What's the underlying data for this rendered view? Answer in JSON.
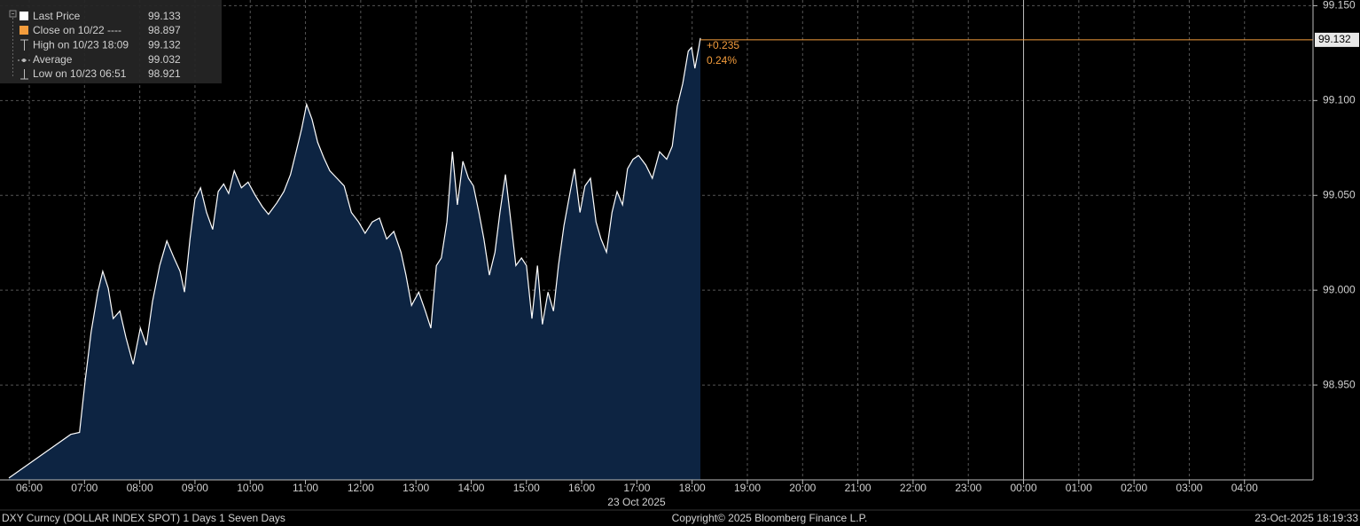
{
  "chart_data": {
    "type": "area",
    "series": [
      {
        "name": "Last Price",
        "color": "#ffffff",
        "fill": "#0d2442",
        "x": [
          5.63,
          6.75,
          6.91,
          7.01,
          7.12,
          7.24,
          7.33,
          7.43,
          7.52,
          7.64,
          7.75,
          7.88,
          8.01,
          8.12,
          8.23,
          8.36,
          8.49,
          8.62,
          8.73,
          8.81,
          8.91,
          9.0,
          9.1,
          9.21,
          9.32,
          9.42,
          9.52,
          9.61,
          9.71,
          9.84,
          9.96,
          10.09,
          10.22,
          10.33,
          10.48,
          10.61,
          10.73,
          10.83,
          10.93,
          11.02,
          11.12,
          11.22,
          11.33,
          11.44,
          11.57,
          11.7,
          11.83,
          11.96,
          12.08,
          12.21,
          12.34,
          12.47,
          12.6,
          12.73,
          12.82,
          12.92,
          13.05,
          13.17,
          13.27,
          13.37,
          13.46,
          13.56,
          13.66,
          13.75,
          13.85,
          13.95,
          14.04,
          14.14,
          14.23,
          14.33,
          14.43,
          14.52,
          14.62,
          14.72,
          14.81,
          14.91,
          15.0,
          15.1,
          15.2,
          15.29,
          15.39,
          15.49,
          15.58,
          15.68,
          15.78,
          15.87,
          15.97,
          16.06,
          16.16,
          16.26,
          16.35,
          16.45,
          16.55,
          16.64,
          16.74,
          16.83,
          16.93,
          17.03,
          17.16,
          17.28,
          17.41,
          17.54,
          17.64,
          17.73,
          17.83,
          17.93,
          17.99,
          18.05,
          18.12,
          18.15
        ],
        "values": [
          98.901,
          98.924,
          98.925,
          98.952,
          98.978,
          98.999,
          99.01,
          99.001,
          98.985,
          98.989,
          98.975,
          98.961,
          98.98,
          98.971,
          98.994,
          99.013,
          99.026,
          99.017,
          99.01,
          98.999,
          99.027,
          99.048,
          99.054,
          99.041,
          99.032,
          99.052,
          99.056,
          99.051,
          99.063,
          99.054,
          99.057,
          99.05,
          99.044,
          99.04,
          99.046,
          99.052,
          99.061,
          99.073,
          99.085,
          99.098,
          99.09,
          99.078,
          99.07,
          99.063,
          99.059,
          99.055,
          99.041,
          99.036,
          99.03,
          99.036,
          99.038,
          99.027,
          99.031,
          99.02,
          99.008,
          98.992,
          98.999,
          98.989,
          98.98,
          99.013,
          99.017,
          99.036,
          99.073,
          99.045,
          99.068,
          99.059,
          99.055,
          99.041,
          99.027,
          99.008,
          99.02,
          99.041,
          99.061,
          99.036,
          99.013,
          99.017,
          99.013,
          98.985,
          99.013,
          98.982,
          98.999,
          98.989,
          99.013,
          99.034,
          99.05,
          99.064,
          99.041,
          99.055,
          99.059,
          99.036,
          99.027,
          99.02,
          99.041,
          99.052,
          99.045,
          99.064,
          99.069,
          99.071,
          99.066,
          99.059,
          99.073,
          99.069,
          99.076,
          99.097,
          99.109,
          99.126,
          99.128,
          99.117,
          99.128,
          99.133
        ]
      }
    ],
    "stats": [
      {
        "label": "Close on 10/22 ----",
        "value": 98.897
      },
      {
        "label": "High on 10/23 18:09",
        "value": 99.132
      },
      {
        "label": "Average",
        "value": 99.032
      },
      {
        "label": "Low on 10/23 06:51",
        "value": 98.921
      }
    ],
    "price_marker": 99.132,
    "change_label": "+0.235",
    "change_pct_label": "0.24%",
    "marker_color": "#f39c3c",
    "xlim": [
      5.47,
      29.24
    ],
    "ylim": [
      98.9,
      99.153
    ],
    "xticks": [
      {
        "value": 6,
        "label": "06:00"
      },
      {
        "value": 7,
        "label": "07:00"
      },
      {
        "value": 8,
        "label": "08:00"
      },
      {
        "value": 9,
        "label": "09:00"
      },
      {
        "value": 10,
        "label": "10:00"
      },
      {
        "value": 11,
        "label": "11:00"
      },
      {
        "value": 12,
        "label": "12:00"
      },
      {
        "value": 13,
        "label": "13:00"
      },
      {
        "value": 14,
        "label": "14:00"
      },
      {
        "value": 15,
        "label": "15:00"
      },
      {
        "value": 16,
        "label": "16:00"
      },
      {
        "value": 17,
        "label": "17:00"
      },
      {
        "value": 18,
        "label": "18:00"
      },
      {
        "value": 19,
        "label": "19:00"
      },
      {
        "value": 20,
        "label": "20:00"
      },
      {
        "value": 21,
        "label": "21:00"
      },
      {
        "value": 22,
        "label": "22:00"
      },
      {
        "value": 23,
        "label": "23:00"
      },
      {
        "value": 24,
        "label": "00:00"
      },
      {
        "value": 25,
        "label": "01:00"
      },
      {
        "value": 26,
        "label": "02:00"
      },
      {
        "value": 27,
        "label": "03:00"
      },
      {
        "value": 28,
        "label": "04:00"
      }
    ],
    "yticks": [
      {
        "value": 98.95,
        "label": "98.950"
      },
      {
        "value": 99,
        "label": "99.000"
      },
      {
        "value": 99.05,
        "label": "99.050"
      },
      {
        "value": 99.1,
        "label": "99.100"
      },
      {
        "value": 99.15,
        "label": "99.150"
      }
    ],
    "day_divider": 24,
    "x_sublabel": "23 Oct 2025",
    "footer_left": "DXY Curncy (DOLLAR INDEX SPOT) 1 Days 1 Seven Days",
    "footer_center": "Copyright© 2025 Bloomberg Finance L.P.",
    "footer_right": "23-Oct-2025 18:19:33",
    "grid": true
  }
}
